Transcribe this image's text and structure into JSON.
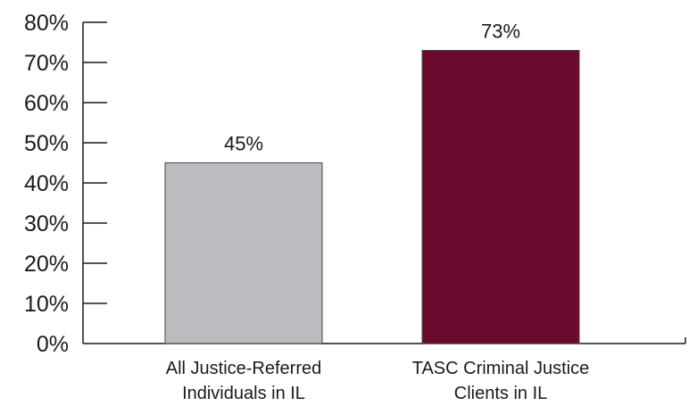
{
  "chart_data": {
    "type": "bar",
    "categories": [
      [
        "All Justice-Referred",
        "Individuals in IL"
      ],
      [
        "TASC Criminal Justice",
        "Clients in IL"
      ]
    ],
    "values": [
      45,
      73
    ],
    "data_labels": [
      "45%",
      "73%"
    ],
    "bar_colors": [
      "#bcbcc0",
      "#6b0a2e"
    ],
    "bar_edge_color": "#444444",
    "axis_color": "#1a1a1a",
    "ylim": [
      0,
      80
    ],
    "yticks": [
      0,
      10,
      20,
      30,
      40,
      50,
      60,
      70,
      80
    ],
    "ytick_labels": [
      "0%",
      "10%",
      "20%",
      "30%",
      "40%",
      "50%",
      "60%",
      "70%",
      "80%"
    ],
    "grid": false,
    "legend": "none"
  }
}
